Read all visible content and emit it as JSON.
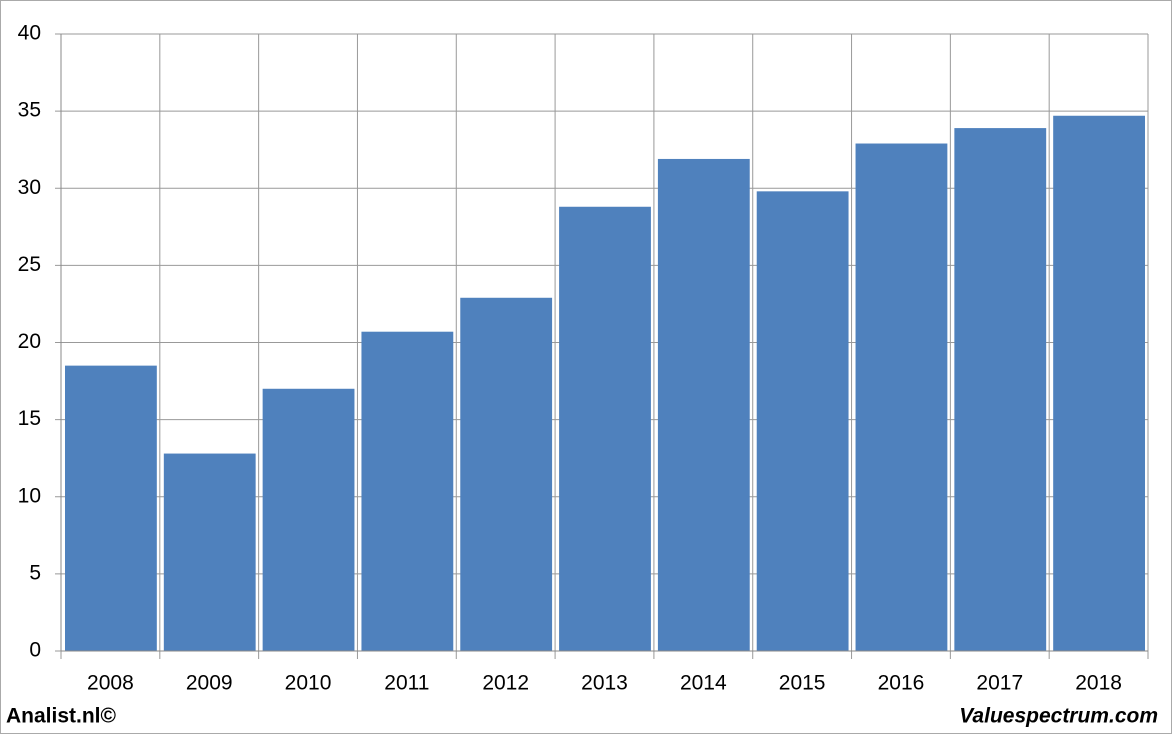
{
  "chart_data": {
    "type": "bar",
    "categories": [
      "2008",
      "2009",
      "2010",
      "2011",
      "2012",
      "2013",
      "2014",
      "2015",
      "2016",
      "2017",
      "2018"
    ],
    "values": [
      18.5,
      12.8,
      17.0,
      20.7,
      22.9,
      28.8,
      31.9,
      29.8,
      32.9,
      33.9,
      34.7
    ],
    "color": "#4f81bd",
    "ylim": [
      0,
      40
    ],
    "yticks": [
      0,
      5,
      10,
      15,
      20,
      25,
      30,
      35,
      40
    ],
    "grid": true
  },
  "footer": {
    "left": "Analist.nl©",
    "right": "Valuespectrum.com"
  }
}
